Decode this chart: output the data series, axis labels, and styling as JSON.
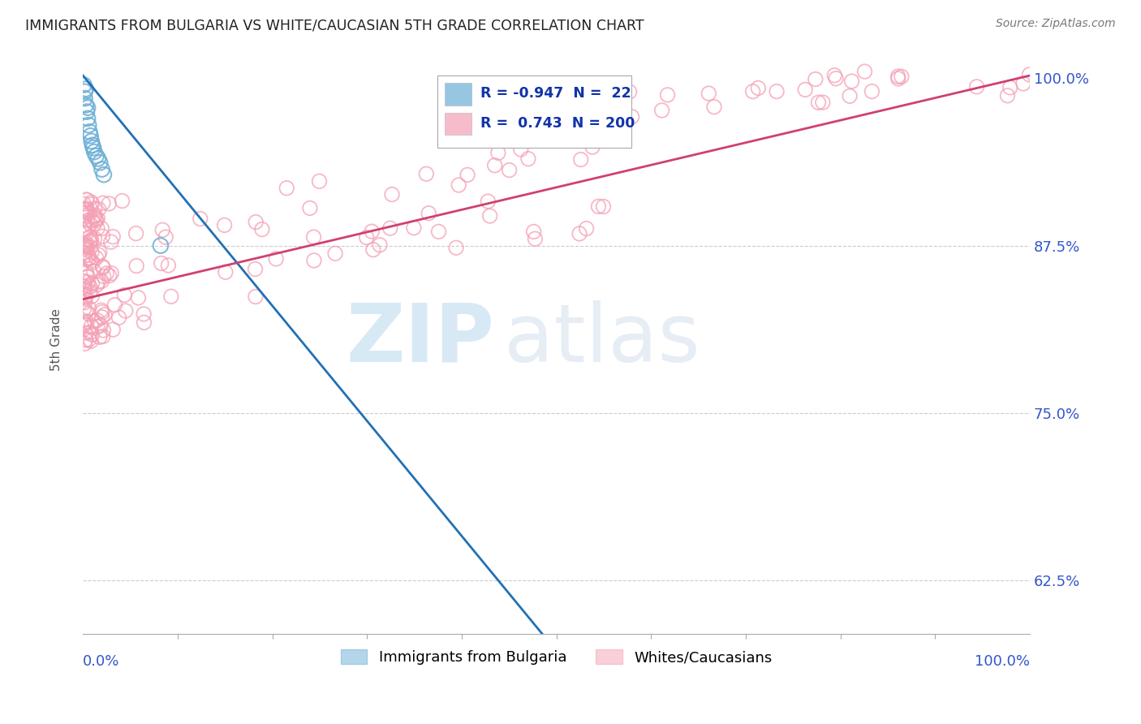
{
  "title": "IMMIGRANTS FROM BULGARIA VS WHITE/CAUCASIAN 5TH GRADE CORRELATION CHART",
  "source": "Source: ZipAtlas.com",
  "ylabel": "5th Grade",
  "ytick_labels": [
    "62.5%",
    "75.0%",
    "87.5%",
    "100.0%"
  ],
  "ytick_values": [
    0.625,
    0.75,
    0.875,
    1.0
  ],
  "xlim": [
    0.0,
    1.0
  ],
  "ylim": [
    0.585,
    1.025
  ],
  "blue_R": -0.947,
  "blue_N": 22,
  "pink_R": 0.743,
  "pink_N": 200,
  "blue_color": "#6baed6",
  "pink_color": "#f4a0b5",
  "blue_line_color": "#2171b5",
  "pink_line_color": "#d04070",
  "legend_blue_label": "Immigrants from Bulgaria",
  "legend_pink_label": "Whites/Caucasians",
  "watermark_zip": "ZIP",
  "watermark_atlas": "atlas",
  "background_color": "#ffffff"
}
